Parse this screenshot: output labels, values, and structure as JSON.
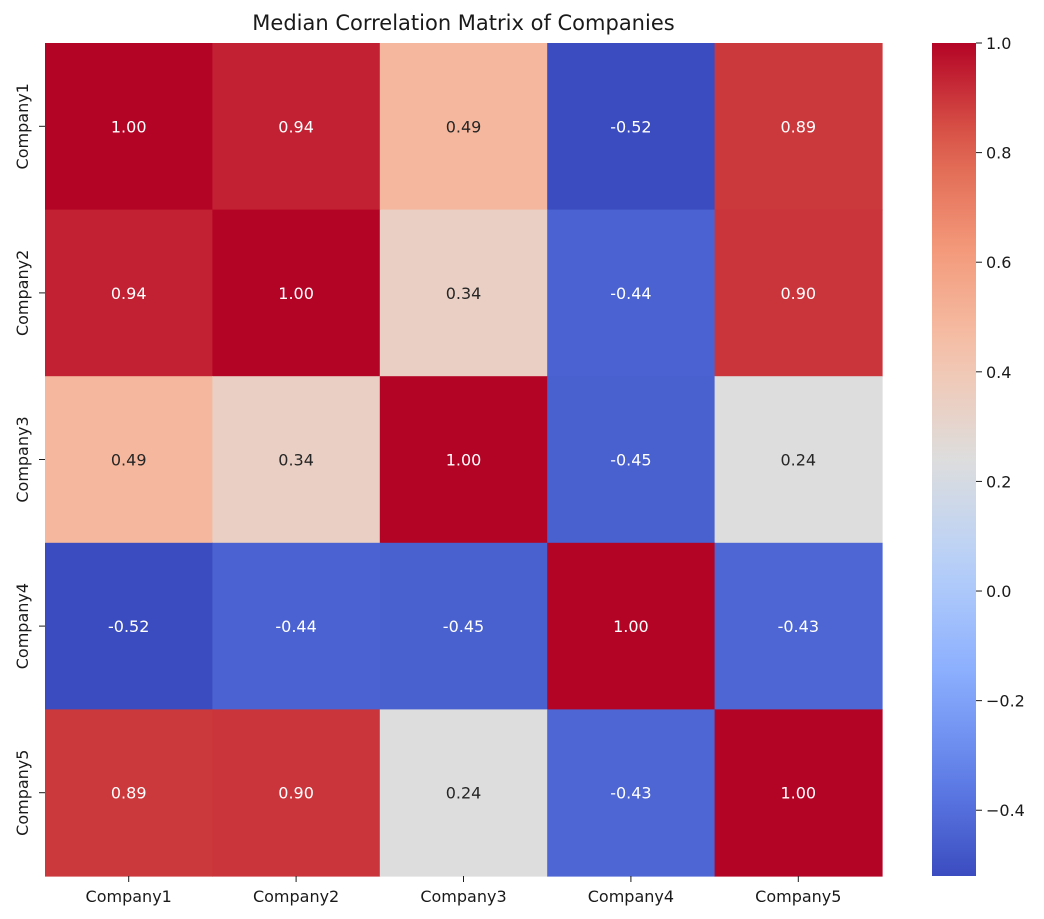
{
  "chart_data": {
    "type": "heatmap",
    "title": "Median Correlation Matrix of Companies",
    "xlabel": "",
    "ylabel": "",
    "x_categories": [
      "Company1",
      "Company2",
      "Company3",
      "Company4",
      "Company5"
    ],
    "y_categories": [
      "Company1",
      "Company2",
      "Company3",
      "Company4",
      "Company5"
    ],
    "values": [
      [
        1.0,
        0.94,
        0.49,
        -0.52,
        0.89
      ],
      [
        0.94,
        1.0,
        0.34,
        -0.44,
        0.9
      ],
      [
        0.49,
        0.34,
        1.0,
        -0.45,
        0.24
      ],
      [
        -0.52,
        -0.44,
        -0.45,
        1.0,
        -0.43
      ],
      [
        0.89,
        0.9,
        0.24,
        -0.43,
        1.0
      ]
    ],
    "value_format": "2 decimals",
    "colormap": "coolwarm",
    "color_range": [
      -0.52,
      1.0
    ],
    "colorbar": {
      "ticks": [
        1.0,
        0.8,
        0.6,
        0.4,
        0.2,
        0.0,
        -0.2,
        -0.4
      ],
      "tick_labels": [
        "1.0",
        "0.8",
        "0.6",
        "0.4",
        "0.2",
        "0.0",
        "−0.2",
        "−0.4"
      ],
      "placement": "right"
    },
    "annotation_colors": {
      "light": "#ffffff",
      "dark": "#262626"
    }
  }
}
